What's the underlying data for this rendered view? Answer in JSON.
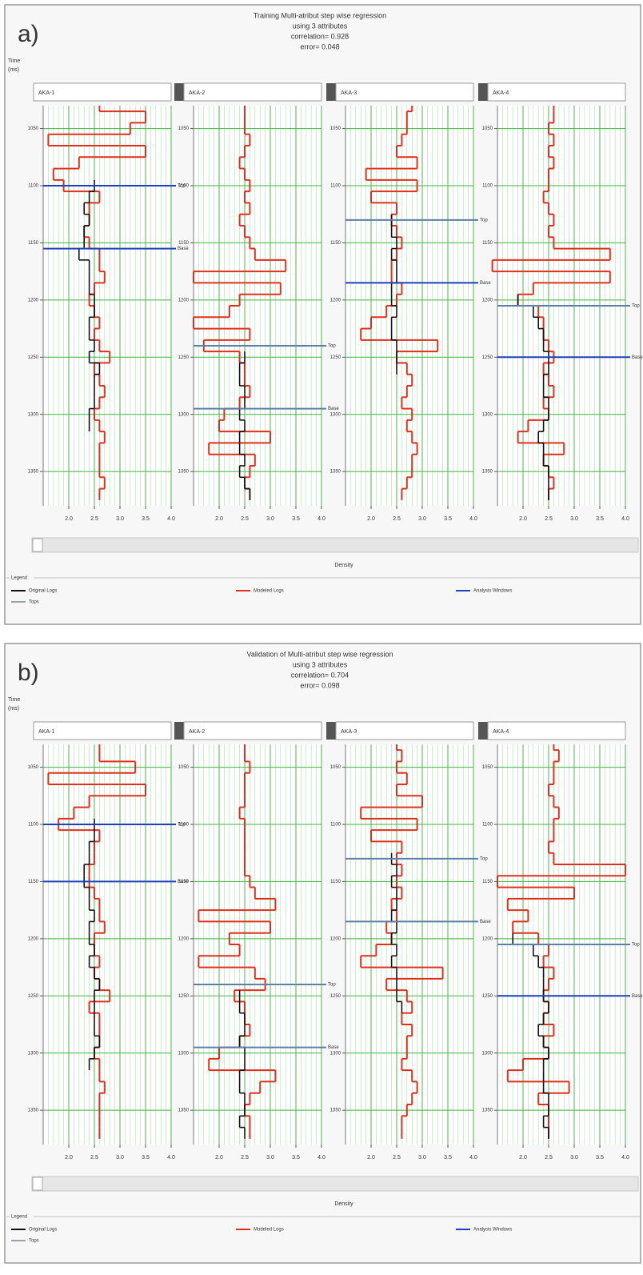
{
  "chart_data": [
    {
      "type": "well-log-panel",
      "panel_label": "a)",
      "title": [
        "Training Multi-atribut step wise regression",
        "using 3 attributes",
        "correlation= 0.928",
        "error= 0.048"
      ],
      "y_label": [
        "Time",
        "(ms)"
      ],
      "x_label": "Density",
      "ylim": [
        1030,
        1380
      ],
      "yticks": [
        1050,
        1100,
        1150,
        1200,
        1250,
        1300,
        1350
      ],
      "xlim": [
        1.5,
        4.0
      ],
      "xticks": [
        {
          "value": 2,
          "label": "2.0"
        },
        {
          "value": 2.5,
          "label": "2.5"
        },
        {
          "value": 3,
          "label": "3.0"
        },
        {
          "value": 3.5,
          "label": "3.5"
        },
        {
          "value": 4,
          "label": "4.0"
        }
      ],
      "grid": true,
      "legend_title": "Legend",
      "legend": [
        {
          "name": "Original Logs",
          "color": "#111111"
        },
        {
          "name": "Modeled Logs",
          "color": "#e0301c"
        },
        {
          "name": "Analysis Windows",
          "color": "#1f3fbf"
        },
        {
          "name": "Tops",
          "color": "#9aa4b0"
        }
      ],
      "depths": [
        1030,
        1040,
        1050,
        1060,
        1070,
        1080,
        1090,
        1100,
        1110,
        1120,
        1130,
        1140,
        1150,
        1160,
        1170,
        1180,
        1190,
        1200,
        1210,
        1220,
        1230,
        1240,
        1250,
        1260,
        1270,
        1280,
        1290,
        1300,
        1310,
        1320,
        1330,
        1340,
        1350,
        1360,
        1370
      ],
      "tracks": [
        {
          "name": "AKA-1",
          "modeled": [
            2.6,
            3.5,
            3.2,
            1.6,
            3.5,
            2.2,
            1.7,
            1.9,
            2.6,
            2.4,
            2.4,
            2.3,
            2.4,
            2.6,
            2.6,
            2.7,
            2.5,
            2.4,
            2.5,
            2.6,
            2.5,
            2.6,
            2.8,
            2.5,
            2.6,
            2.7,
            2.6,
            2.5,
            2.6,
            2.7,
            2.6,
            2.6,
            2.6,
            2.7,
            2.6
          ],
          "original": [
            null,
            null,
            null,
            null,
            null,
            null,
            null,
            2.5,
            2.4,
            2.3,
            2.4,
            2.3,
            2.3,
            2.2,
            2.4,
            2.4,
            2.4,
            2.5,
            2.5,
            2.4,
            2.4,
            2.5,
            2.4,
            2.6,
            2.5,
            2.5,
            2.5,
            2.4,
            2.4,
            null,
            null,
            null,
            null,
            null,
            null
          ],
          "horizons": [
            {
              "name": "Top",
              "value": 1100,
              "color": "#1f3fbf"
            },
            {
              "name": "Base",
              "value": 1155,
              "color": "#1f3fbf"
            }
          ]
        },
        {
          "name": "AKA-2",
          "modeled": [
            2.5,
            2.5,
            2.5,
            2.6,
            2.5,
            2.4,
            2.5,
            2.6,
            2.5,
            2.6,
            2.4,
            2.5,
            2.6,
            2.7,
            3.3,
            1.5,
            3.2,
            2.4,
            2.2,
            1.5,
            2.6,
            1.7,
            2.4,
            2.5,
            2.5,
            2.6,
            2.4,
            2.1,
            2.0,
            3.0,
            1.8,
            2.7,
            2.6,
            2.5,
            2.6
          ],
          "original": [
            null,
            null,
            null,
            null,
            null,
            null,
            null,
            null,
            null,
            null,
            null,
            null,
            null,
            null,
            null,
            null,
            null,
            null,
            null,
            null,
            null,
            null,
            2.5,
            2.4,
            2.4,
            2.5,
            2.5,
            2.4,
            2.5,
            2.4,
            2.4,
            2.5,
            2.4,
            2.5,
            2.6
          ],
          "horizons": [
            {
              "name": "Top",
              "value": 1240,
              "color": "#5b7fa8"
            },
            {
              "name": "Base",
              "value": 1295,
              "color": "#5b7fa8"
            }
          ]
        },
        {
          "name": "AKA-3",
          "modeled": [
            2.8,
            2.7,
            2.7,
            2.6,
            2.5,
            2.9,
            1.9,
            2.9,
            2.0,
            2.5,
            2.4,
            2.5,
            2.6,
            2.5,
            2.4,
            2.4,
            2.6,
            2.5,
            2.3,
            2.0,
            1.8,
            3.3,
            2.5,
            2.7,
            2.8,
            2.7,
            2.6,
            2.8,
            2.7,
            2.8,
            2.9,
            2.8,
            2.8,
            2.7,
            2.6
          ],
          "original": [
            null,
            null,
            null,
            null,
            null,
            null,
            null,
            null,
            null,
            null,
            2.4,
            2.4,
            2.5,
            2.4,
            2.5,
            2.5,
            2.4,
            2.4,
            2.5,
            2.4,
            2.4,
            2.5,
            2.5,
            2.5,
            null,
            null,
            null,
            null,
            null,
            null,
            null,
            null,
            null,
            null,
            null
          ],
          "horizons": [
            {
              "name": "Top",
              "value": 1130,
              "color": "#5b7fa8"
            },
            {
              "name": "Base",
              "value": 1185,
              "color": "#1f3fbf"
            }
          ]
        },
        {
          "name": "AKA-4",
          "modeled": [
            2.6,
            2.6,
            2.5,
            2.6,
            2.5,
            2.6,
            2.5,
            2.5,
            2.4,
            2.5,
            2.6,
            2.5,
            2.6,
            3.7,
            1.4,
            3.7,
            2.2,
            1.9,
            2.3,
            2.4,
            2.4,
            2.5,
            2.6,
            2.4,
            2.5,
            2.6,
            2.4,
            2.5,
            2.1,
            1.9,
            2.8,
            2.4,
            2.5,
            2.6,
            2.5
          ],
          "original": [
            null,
            null,
            null,
            null,
            null,
            null,
            null,
            null,
            null,
            null,
            null,
            null,
            null,
            null,
            null,
            null,
            null,
            1.9,
            2.2,
            2.3,
            2.4,
            2.4,
            2.5,
            2.5,
            2.4,
            2.4,
            2.5,
            2.5,
            2.4,
            2.3,
            2.4,
            2.4,
            2.5,
            2.5,
            2.5
          ],
          "horizons": [
            {
              "name": "Top",
              "value": 1205,
              "color": "#5b7fa8"
            },
            {
              "name": "Base",
              "value": 1250,
              "color": "#1f3fbf"
            }
          ]
        }
      ]
    },
    {
      "type": "well-log-panel",
      "panel_label": "b)",
      "title": [
        "Validation of Multi-atribut step wise regression",
        "using 3 attributes",
        "correlation= 0.704",
        "error= 0.098"
      ],
      "y_label": [
        "Time",
        "(ms)"
      ],
      "x_label": "Density",
      "ylim": [
        1030,
        1380
      ],
      "yticks": [
        1050,
        1100,
        1150,
        1200,
        1250,
        1300,
        1350
      ],
      "xlim": [
        1.5,
        4.0
      ],
      "xticks": [
        {
          "value": 2,
          "label": "2.0"
        },
        {
          "value": 2.5,
          "label": "2.5"
        },
        {
          "value": 3,
          "label": "3.0"
        },
        {
          "value": 3.5,
          "label": "3.5"
        },
        {
          "value": 4,
          "label": "4.0"
        }
      ],
      "grid": true,
      "legend_title": "Legend",
      "legend": [
        {
          "name": "Original Logs",
          "color": "#111111"
        },
        {
          "name": "Modeled Logs",
          "color": "#e0301c"
        },
        {
          "name": "Analysis Windows",
          "color": "#1f3fbf"
        },
        {
          "name": "Tops",
          "color": "#9aa4b0"
        }
      ],
      "depths": [
        1030,
        1040,
        1050,
        1060,
        1070,
        1080,
        1090,
        1100,
        1110,
        1120,
        1130,
        1140,
        1150,
        1160,
        1170,
        1180,
        1190,
        1200,
        1210,
        1220,
        1230,
        1240,
        1250,
        1260,
        1270,
        1280,
        1290,
        1300,
        1310,
        1320,
        1330,
        1340,
        1350,
        1360,
        1370
      ],
      "tracks": [
        {
          "name": "AKA-1",
          "modeled": [
            2.6,
            2.6,
            3.3,
            1.6,
            3.5,
            2.4,
            2.1,
            1.8,
            2.6,
            2.5,
            2.5,
            2.4,
            2.4,
            2.5,
            2.6,
            2.6,
            2.7,
            2.5,
            2.5,
            2.6,
            2.5,
            2.6,
            2.8,
            2.4,
            2.6,
            2.6,
            2.6,
            2.5,
            2.6,
            2.6,
            2.7,
            2.6,
            2.6,
            2.6,
            2.6
          ],
          "original": [
            null,
            null,
            null,
            null,
            null,
            null,
            null,
            2.5,
            2.5,
            2.4,
            2.4,
            2.3,
            2.3,
            2.4,
            2.4,
            2.5,
            2.4,
            2.4,
            2.5,
            2.4,
            2.5,
            2.6,
            2.5,
            2.5,
            2.5,
            2.5,
            2.6,
            2.5,
            2.4,
            null,
            null,
            null,
            null,
            null,
            null
          ],
          "horizons": [
            {
              "name": "Top",
              "value": 1100,
              "color": "#1f3fbf"
            },
            {
              "name": "Base",
              "value": 1150,
              "color": "#1f3fbf"
            }
          ]
        },
        {
          "name": "AKA-2",
          "modeled": [
            2.5,
            2.5,
            2.6,
            2.5,
            2.5,
            2.5,
            2.4,
            2.5,
            2.5,
            2.5,
            2.5,
            2.5,
            2.6,
            2.7,
            3.1,
            1.6,
            3.0,
            2.2,
            2.4,
            1.6,
            2.7,
            2.9,
            2.3,
            2.5,
            2.5,
            2.6,
            2.4,
            2.0,
            1.8,
            3.1,
            2.8,
            2.6,
            2.5,
            2.6,
            2.6
          ],
          "original": [
            null,
            null,
            null,
            null,
            null,
            null,
            null,
            null,
            null,
            null,
            null,
            null,
            null,
            null,
            null,
            null,
            null,
            null,
            null,
            null,
            null,
            null,
            2.4,
            2.4,
            2.5,
            2.5,
            2.4,
            2.5,
            2.5,
            2.4,
            2.4,
            2.5,
            2.5,
            2.4,
            2.5
          ],
          "horizons": [
            {
              "name": "Top",
              "value": 1240,
              "color": "#5b7fa8"
            },
            {
              "name": "Base",
              "value": 1295,
              "color": "#5b7fa8"
            }
          ]
        },
        {
          "name": "AKA-3",
          "modeled": [
            2.5,
            2.6,
            2.5,
            2.7,
            2.5,
            3.0,
            1.8,
            2.9,
            2.0,
            2.6,
            2.5,
            2.6,
            2.5,
            2.6,
            2.4,
            2.5,
            2.3,
            2.4,
            2.1,
            1.8,
            3.4,
            2.3,
            2.7,
            2.8,
            2.6,
            2.8,
            2.7,
            2.7,
            2.6,
            2.8,
            2.9,
            2.8,
            2.7,
            2.6,
            2.6
          ],
          "original": [
            null,
            null,
            null,
            null,
            null,
            null,
            null,
            null,
            null,
            null,
            2.4,
            2.5,
            2.4,
            2.5,
            2.5,
            2.4,
            2.5,
            2.4,
            2.5,
            2.4,
            2.5,
            2.5,
            2.5,
            2.6,
            null,
            null,
            null,
            null,
            null,
            null,
            null,
            null,
            null,
            null,
            null
          ],
          "horizons": [
            {
              "name": "Top",
              "value": 1130,
              "color": "#5b7fa8"
            },
            {
              "name": "Base",
              "value": 1185,
              "color": "#5b7fa8"
            }
          ]
        },
        {
          "name": "AKA-4",
          "modeled": [
            2.6,
            2.7,
            2.6,
            2.6,
            2.5,
            2.6,
            2.7,
            2.6,
            2.6,
            2.5,
            2.6,
            4.0,
            1.5,
            3.0,
            1.7,
            2.1,
            1.8,
            2.3,
            2.5,
            2.4,
            2.6,
            2.5,
            2.4,
            2.5,
            2.4,
            2.6,
            2.4,
            2.5,
            2.0,
            1.7,
            2.9,
            2.3,
            2.5,
            2.5,
            2.5
          ],
          "original": [
            null,
            null,
            null,
            null,
            null,
            null,
            null,
            null,
            null,
            null,
            null,
            null,
            null,
            null,
            null,
            null,
            null,
            1.8,
            2.2,
            2.3,
            2.4,
            2.4,
            2.4,
            2.5,
            2.4,
            2.3,
            2.4,
            2.5,
            2.4,
            2.4,
            2.4,
            2.5,
            2.5,
            2.4,
            2.5
          ],
          "horizons": [
            {
              "name": "Top",
              "value": 1205,
              "color": "#5b7fa8"
            },
            {
              "name": "Base",
              "value": 1250,
              "color": "#1f3fbf"
            }
          ]
        }
      ]
    }
  ]
}
